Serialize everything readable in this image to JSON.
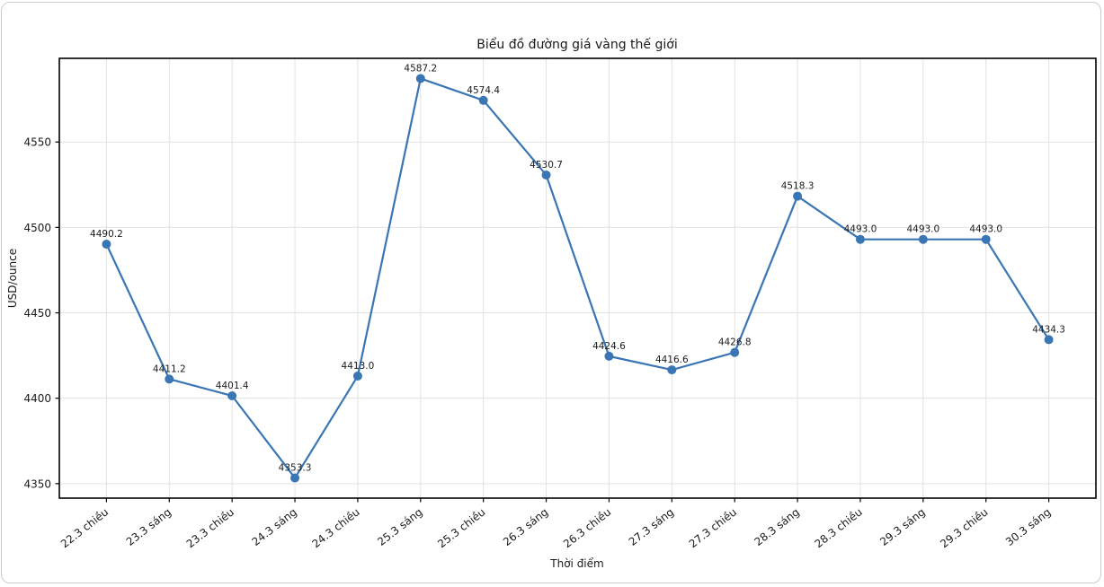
{
  "figure": {
    "background": "#ffffff",
    "border_color": "#cbcbcb"
  },
  "chart_data": {
    "type": "line",
    "title": "Biểu đồ đường giá vàng thế giới",
    "xlabel": "Thời điểm",
    "ylabel": "USD/ounce",
    "categories": [
      "22.3 chiều",
      "23.3 sáng",
      "23.3 chiều",
      "24.3 sáng",
      "24.3 chiều",
      "25.3 sáng",
      "25.3 chiều",
      "26.3 sáng",
      "26.3 chiều",
      "27.3 sáng",
      "27.3 chiều",
      "28.3 sáng",
      "28.3 chiều",
      "29.3 sáng",
      "29.3 chiều",
      "30.3 sáng"
    ],
    "values": [
      4490.2,
      4411.2,
      4401.4,
      4353.3,
      4413.0,
      4587.2,
      4574.4,
      4530.7,
      4424.6,
      4416.6,
      4426.8,
      4518.3,
      4493.0,
      4493.0,
      4493.0,
      4434.3
    ],
    "data_labels": [
      "4490.2",
      "4411.2",
      "4401.4",
      "4353.3",
      "4413.0",
      "4587.2",
      "4574.4",
      "4530.7",
      "4424.6",
      "4416.6",
      "4426.8",
      "4518.3",
      "4493.0",
      "4493.0",
      "4493.0",
      "4434.3"
    ],
    "y_ticks": [
      4350,
      4400,
      4450,
      4500,
      4550
    ],
    "ylim": [
      4341.5,
      4599.0
    ],
    "grid": true,
    "legend": "none",
    "line_color": "#3a76b4",
    "marker_color": "#3a76b4",
    "marker": "circle",
    "grid_color": "#e2e2e2",
    "spine_color": "#000000",
    "text_color": "#1a1a1a"
  }
}
